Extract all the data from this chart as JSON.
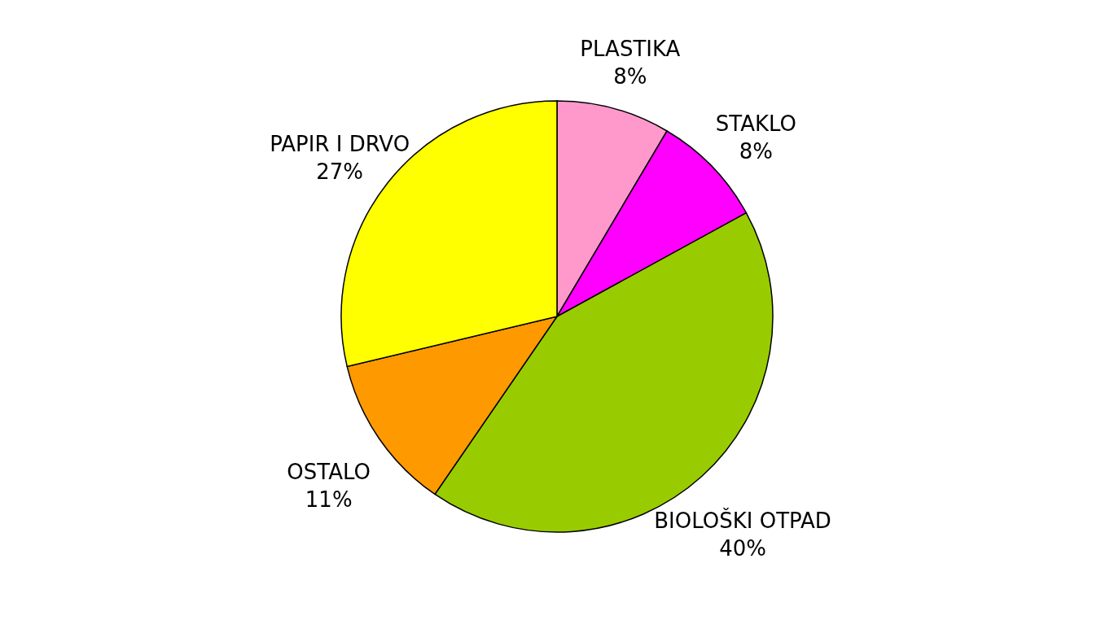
{
  "chart_data": {
    "type": "pie",
    "categories": [
      "PLASTIKA",
      "STAKLO",
      "BIOLOŠKI OTPAD",
      "OSTALO",
      "PAPIR I DRVO"
    ],
    "values": [
      8,
      8,
      40,
      11,
      27
    ],
    "colors": [
      "#ff99cc",
      "#ff00ff",
      "#99cc00",
      "#ff9900",
      "#ffff00"
    ],
    "value_labels": [
      "8%",
      "8%",
      "40%",
      "11%",
      "27%"
    ]
  }
}
